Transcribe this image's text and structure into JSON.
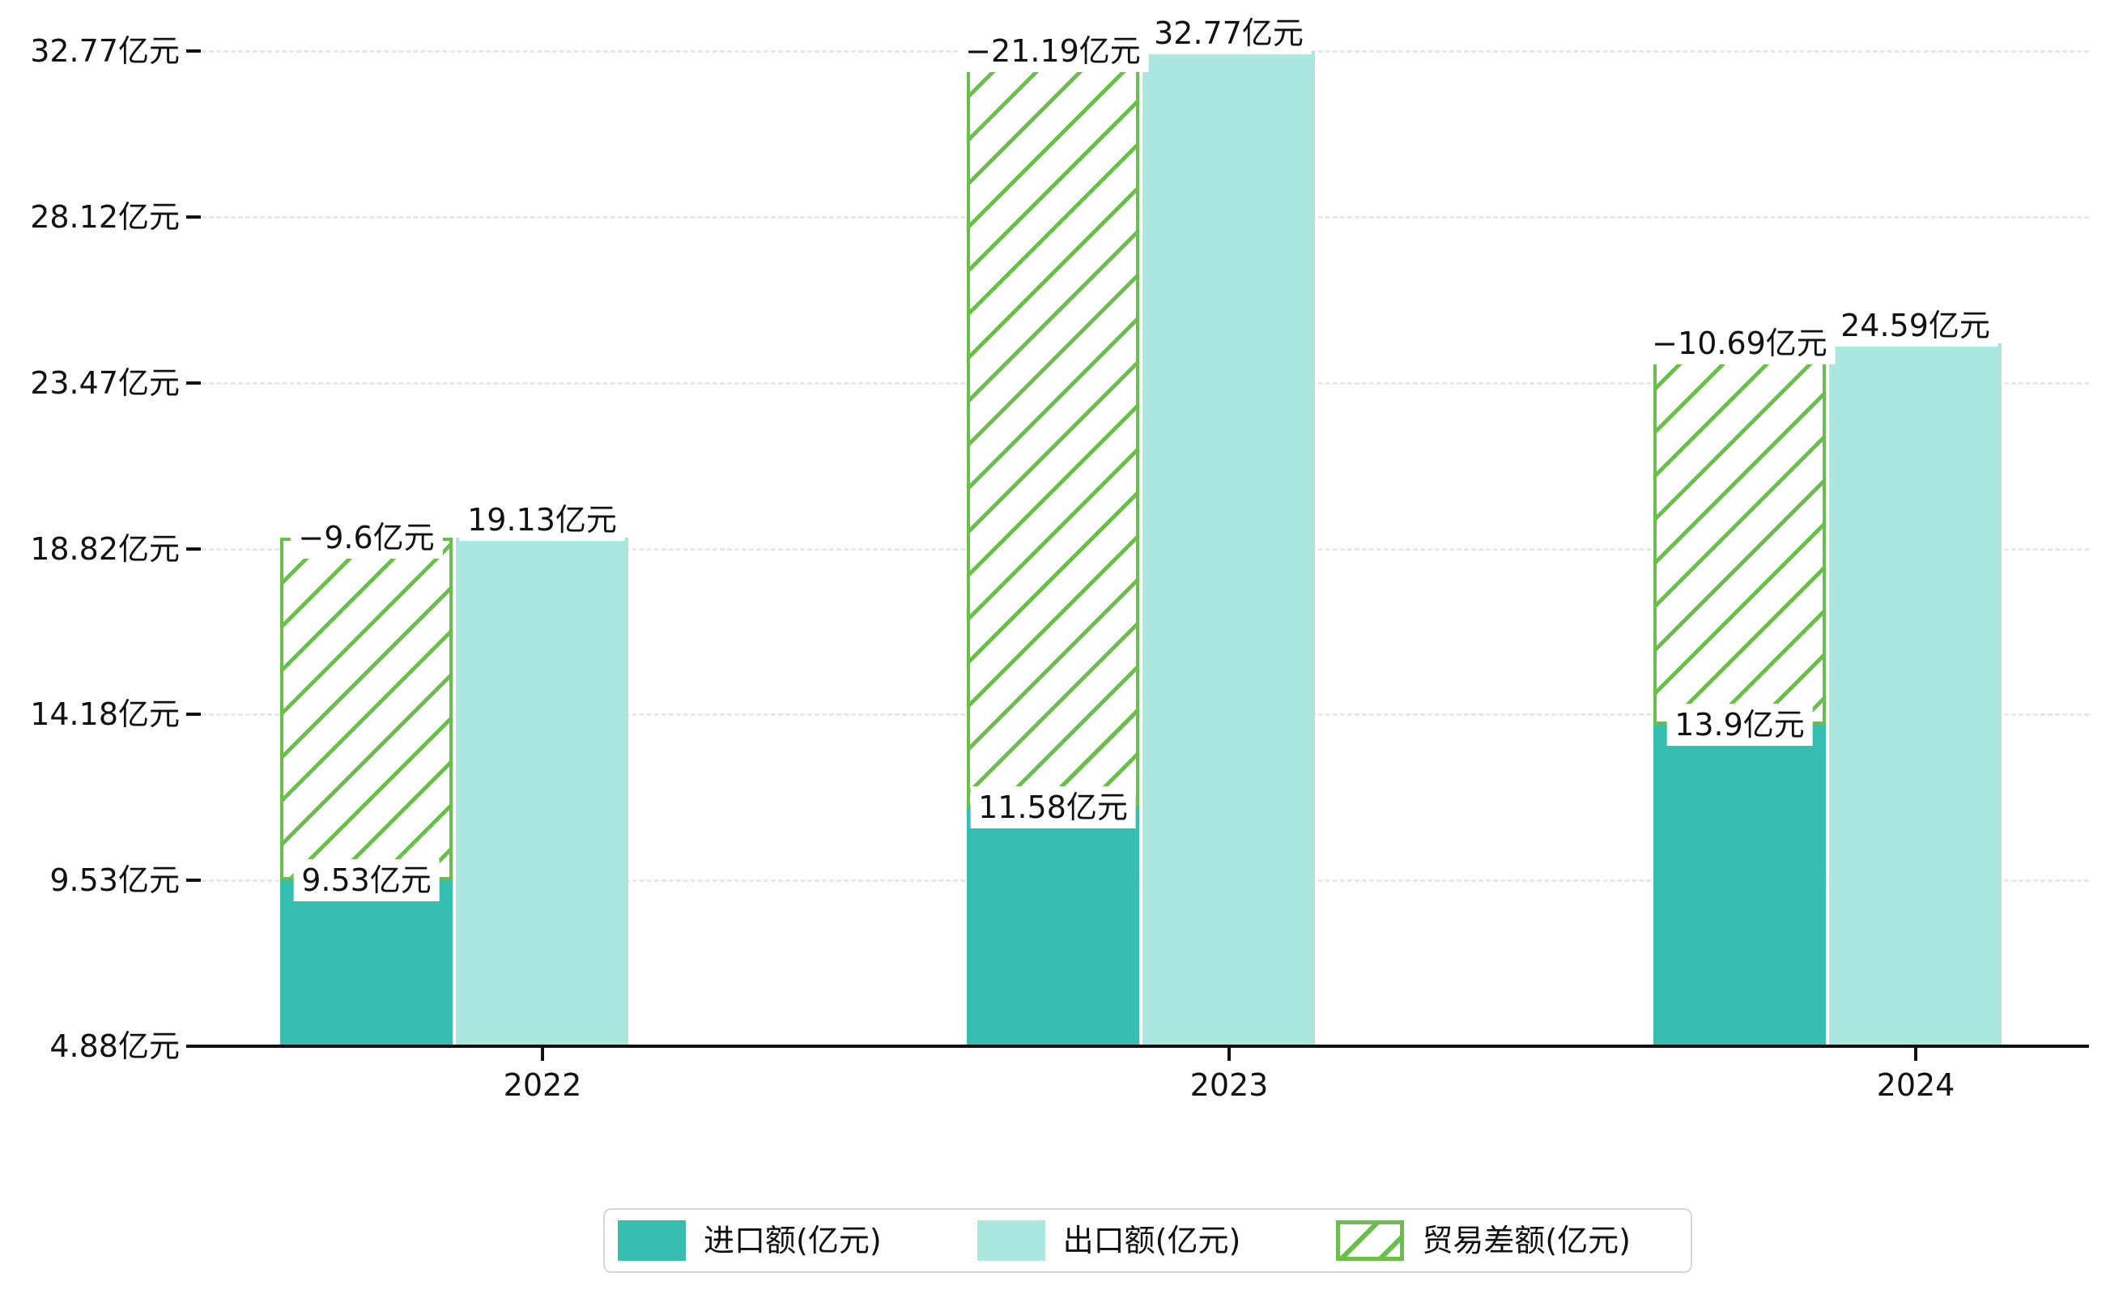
{
  "chart_data": {
    "type": "bar",
    "title": "",
    "xlabel": "",
    "ylabel": "",
    "categories": [
      "2022",
      "2023",
      "2024"
    ],
    "series": [
      {
        "name": "进口额(亿元)",
        "values": [
          9.53,
          11.58,
          13.9
        ],
        "labels": [
          "9.53亿元",
          "11.58亿元",
          "13.9亿元"
        ],
        "color": "#36beb1",
        "style": "solid"
      },
      {
        "name": "出口额(亿元)",
        "values": [
          19.13,
          32.77,
          24.59
        ],
        "labels": [
          "19.13亿元",
          "32.77亿元",
          "24.59亿元"
        ],
        "color": "#a9e7df",
        "style": "solid"
      },
      {
        "name": "贸易差额(亿元)",
        "values": [
          -9.6,
          -21.19,
          -10.69
        ],
        "labels": [
          "−9.6亿元",
          "−21.19亿元",
          "−10.69亿元"
        ],
        "color": "#6abf4b",
        "style": "hatched",
        "note": "drawn as hatched column stacked on top of 进口额 column, spanning from import value up to export value"
      }
    ],
    "y_tick_labels": [
      "4.88亿元",
      "9.53亿元",
      "14.18亿元",
      "18.82亿元",
      "23.47亿元",
      "28.12亿元",
      "32.77亿元"
    ],
    "y_tick_values": [
      4.88,
      9.53,
      14.18,
      18.82,
      23.47,
      28.12,
      32.77
    ],
    "ylim": [
      4.88,
      32.77
    ],
    "grid": "horizontal dashed light-gray",
    "legend_position": "bottom center, boxed",
    "colors": {
      "import_bar": "#36beb1",
      "export_bar": "#a9e7df",
      "balance_hatch": "#6abf4b",
      "gridline": "#e8e8e8",
      "axis": "#111111",
      "legend_border": "#d6d6d6",
      "background": "#ffffff"
    }
  }
}
